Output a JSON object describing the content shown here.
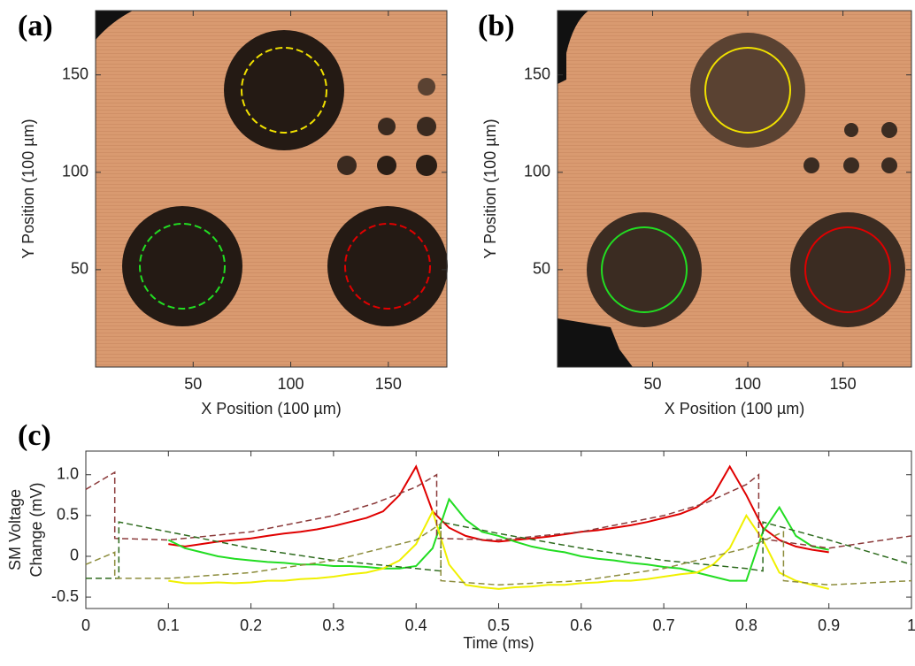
{
  "chart_data": [
    {
      "type": "image",
      "panel_label": "(a)",
      "xlabel": "X Position (100 µm)",
      "ylabel": "Y Position (100 µm)",
      "xlim": [
        0,
        180
      ],
      "ylim": [
        0,
        183
      ],
      "xticks": [
        50,
        100,
        150
      ],
      "yticks": [
        50,
        100,
        150
      ]
    },
    {
      "type": "image",
      "panel_label": "(b)",
      "xlabel": "X Position (100 µm)",
      "ylabel": "Y Position (100 µm)",
      "xlim": [
        0,
        186
      ],
      "ylim": [
        0,
        183
      ],
      "xticks": [
        50,
        100,
        150
      ],
      "yticks": [
        50,
        100,
        150
      ]
    },
    {
      "type": "line",
      "panel_label": "(c)",
      "xlabel": "Time (ms)",
      "ylabel": [
        "SM Voltage",
        "Change (mV)"
      ],
      "xlim": [
        0,
        1
      ],
      "ylim": [
        -0.64,
        1.29
      ],
      "xticks": [
        0,
        0.1,
        0.2,
        0.3,
        0.4,
        0.5,
        0.6,
        0.7,
        0.8,
        0.9,
        1
      ],
      "yticks": [
        -0.5,
        0,
        0.5,
        {
          "value": 1,
          "label": "1.0"
        }
      ],
      "series": [
        {
          "color": "#e00000",
          "width": 2,
          "x": [
            0.1,
            0.12,
            0.14,
            0.16,
            0.18,
            0.2,
            0.22,
            0.24,
            0.26,
            0.28,
            0.3,
            0.32,
            0.34,
            0.36,
            0.38,
            0.4,
            0.42,
            0.44,
            0.46,
            0.48,
            0.5,
            0.52,
            0.54,
            0.56,
            0.58,
            0.6,
            0.62,
            0.64,
            0.66,
            0.68,
            0.7,
            0.72,
            0.74,
            0.76,
            0.78,
            0.8,
            0.82,
            0.84,
            0.86,
            0.88,
            0.9
          ],
          "values": [
            0.15,
            0.12,
            0.15,
            0.18,
            0.2,
            0.22,
            0.25,
            0.28,
            0.3,
            0.33,
            0.37,
            0.42,
            0.47,
            0.55,
            0.75,
            1.1,
            0.55,
            0.35,
            0.25,
            0.2,
            0.18,
            0.2,
            0.22,
            0.24,
            0.27,
            0.3,
            0.32,
            0.35,
            0.38,
            0.42,
            0.47,
            0.52,
            0.6,
            0.75,
            1.1,
            0.75,
            0.35,
            0.2,
            0.12,
            0.08,
            0.05
          ]
        },
        {
          "color": "#22dd22",
          "width": 2,
          "x": [
            0.1,
            0.12,
            0.14,
            0.16,
            0.18,
            0.2,
            0.22,
            0.24,
            0.26,
            0.28,
            0.3,
            0.32,
            0.34,
            0.36,
            0.38,
            0.4,
            0.42,
            0.44,
            0.46,
            0.48,
            0.5,
            0.52,
            0.54,
            0.56,
            0.58,
            0.6,
            0.62,
            0.64,
            0.66,
            0.68,
            0.7,
            0.72,
            0.74,
            0.76,
            0.78,
            0.8,
            0.82,
            0.84,
            0.86,
            0.88,
            0.9
          ],
          "values": [
            0.2,
            0.1,
            0.05,
            0,
            -0.03,
            -0.05,
            -0.07,
            -0.08,
            -0.1,
            -0.1,
            -0.12,
            -0.12,
            -0.13,
            -0.15,
            -0.15,
            -0.12,
            0.1,
            0.7,
            0.45,
            0.3,
            0.25,
            0.18,
            0.12,
            0.08,
            0.05,
            0,
            -0.03,
            -0.05,
            -0.08,
            -0.1,
            -0.13,
            -0.15,
            -0.2,
            -0.25,
            -0.3,
            -0.3,
            0.3,
            0.6,
            0.25,
            0.12,
            0.08
          ]
        },
        {
          "color": "#f0f000",
          "width": 2,
          "x": [
            0.1,
            0.12,
            0.14,
            0.16,
            0.18,
            0.2,
            0.22,
            0.24,
            0.26,
            0.28,
            0.3,
            0.32,
            0.34,
            0.36,
            0.38,
            0.4,
            0.42,
            0.44,
            0.46,
            0.48,
            0.5,
            0.52,
            0.54,
            0.56,
            0.58,
            0.6,
            0.62,
            0.64,
            0.66,
            0.68,
            0.7,
            0.72,
            0.74,
            0.76,
            0.78,
            0.8,
            0.82,
            0.84,
            0.86,
            0.88,
            0.9
          ],
          "values": [
            -0.3,
            -0.33,
            -0.33,
            -0.32,
            -0.33,
            -0.32,
            -0.3,
            -0.3,
            -0.28,
            -0.27,
            -0.25,
            -0.22,
            -0.2,
            -0.15,
            -0.05,
            0.15,
            0.55,
            -0.1,
            -0.35,
            -0.38,
            -0.4,
            -0.38,
            -0.37,
            -0.35,
            -0.35,
            -0.33,
            -0.32,
            -0.3,
            -0.3,
            -0.28,
            -0.25,
            -0.22,
            -0.2,
            -0.1,
            0.1,
            0.5,
            0.2,
            -0.2,
            -0.3,
            -0.35,
            -0.4
          ]
        },
        {
          "color": "#8b3a3a",
          "width": 1.5,
          "dashed": true,
          "x": [
            0,
            0.035,
            0.035,
            0.1,
            0.2,
            0.3,
            0.35,
            0.4,
            0.425,
            0.425,
            0.5,
            0.6,
            0.7,
            0.75,
            0.8,
            0.815,
            0.815,
            0.9,
            1
          ],
          "values": [
            0.82,
            1.03,
            0.22,
            0.2,
            0.3,
            0.5,
            0.65,
            0.85,
            1,
            0.22,
            0.2,
            0.3,
            0.5,
            0.65,
            0.88,
            1,
            0.22,
            0.1,
            0.25
          ]
        },
        {
          "color": "#2e6b1e",
          "width": 1.5,
          "dashed": true,
          "x": [
            0,
            0.04,
            0.04,
            0.1,
            0.2,
            0.3,
            0.4,
            0.43,
            0.43,
            0.5,
            0.6,
            0.7,
            0.8,
            0.82,
            0.82,
            0.9,
            1
          ],
          "values": [
            -0.27,
            -0.27,
            0.42,
            0.3,
            0.1,
            -0.05,
            -0.15,
            -0.18,
            0.42,
            0.28,
            0.1,
            -0.05,
            -0.15,
            -0.18,
            0.42,
            0.2,
            -0.1
          ]
        },
        {
          "color": "#8c8c3c",
          "width": 1.5,
          "dashed": true,
          "x": [
            0,
            0.035,
            0.035,
            0.1,
            0.2,
            0.3,
            0.4,
            0.43,
            0.43,
            0.5,
            0.6,
            0.7,
            0.8,
            0.845,
            0.845,
            0.9,
            1
          ],
          "values": [
            -0.1,
            0.05,
            -0.27,
            -0.27,
            -0.2,
            -0.05,
            0.2,
            0.4,
            -0.3,
            -0.35,
            -0.3,
            -0.15,
            0.1,
            0.3,
            -0.3,
            -0.35,
            -0.3
          ]
        }
      ]
    }
  ]
}
